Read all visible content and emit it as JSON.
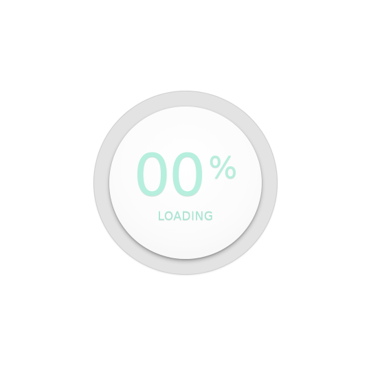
{
  "loader": {
    "progress_percent": 0,
    "percent_value": "00",
    "percent_sign": "%",
    "status_label": "LOADING"
  },
  "colors": {
    "text_accent": "#b6efdd",
    "ring_track": "#e3e3e3",
    "disc_face": "#fbfbfb",
    "background": "#ffffff"
  }
}
